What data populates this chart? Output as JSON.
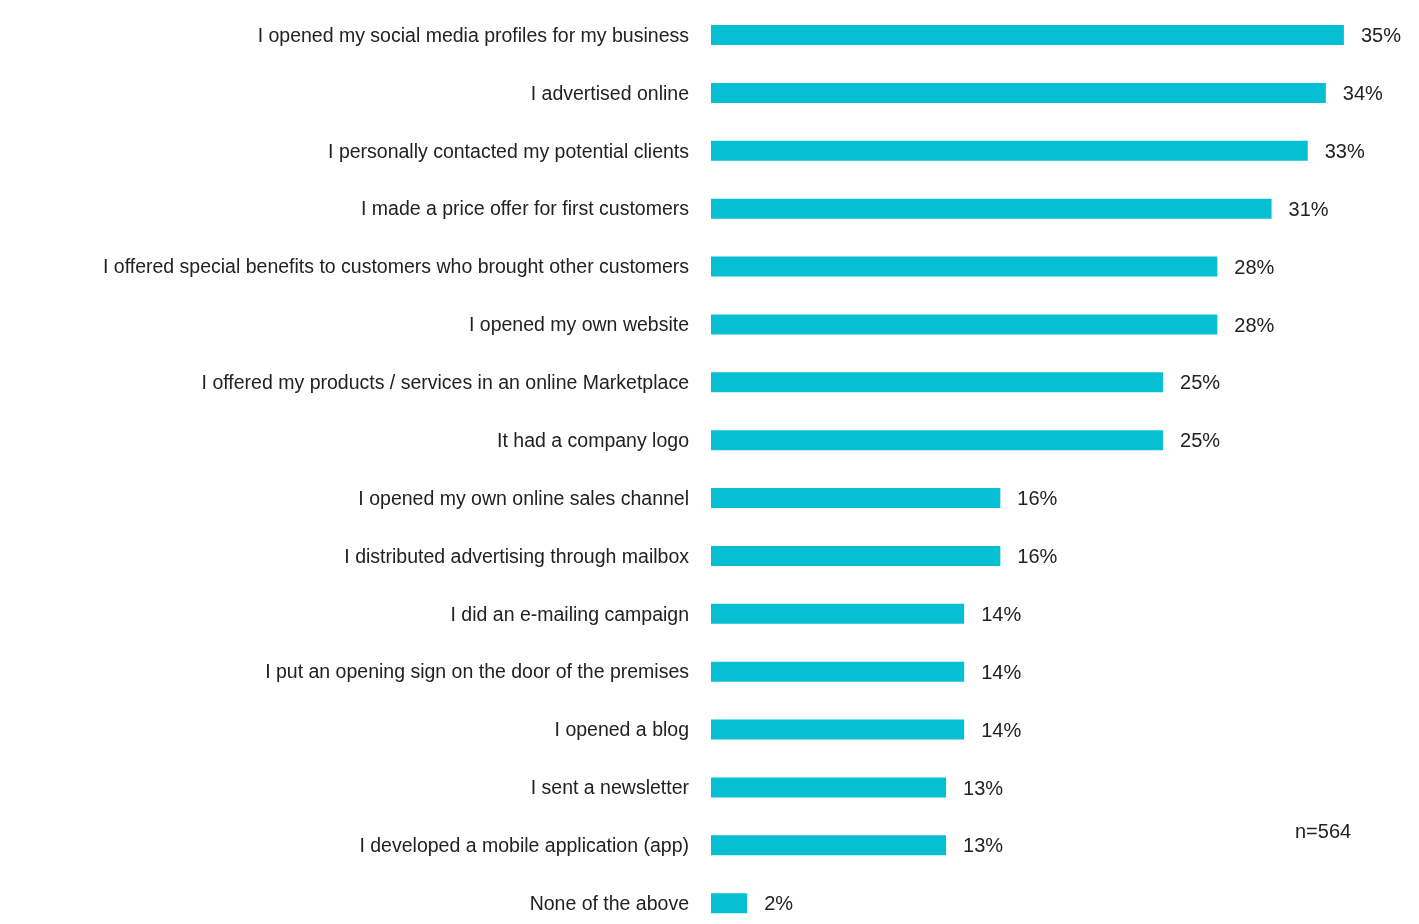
{
  "chart_data": {
    "type": "bar",
    "orientation": "horizontal",
    "categories": [
      "I opened my social media profiles for my business",
      "I advertised online",
      "I personally contacted my potential clients",
      "I made a price offer for first customers",
      "I offered special benefits to customers who brought other customers",
      "I opened my own website",
      "I offered my products / services in an online Marketplace",
      "It had a company logo",
      "I opened my own online sales channel",
      "I distributed advertising through mailbox",
      "I did an e-mailing campaign",
      "I put an opening sign on the door of the premises",
      "I opened a blog",
      "I sent a newsletter",
      "I developed a mobile application (app)",
      "None of the above"
    ],
    "values": [
      35,
      34,
      33,
      31,
      28,
      28,
      25,
      25,
      16,
      16,
      14,
      14,
      14,
      13,
      13,
      2
    ],
    "value_labels": [
      "35%",
      "34%",
      "33%",
      "31%",
      "28%",
      "28%",
      "25%",
      "25%",
      "16%",
      "16%",
      "14%",
      "14%",
      "14%",
      "13%",
      "13%",
      "2%"
    ],
    "color": "#06bfd3",
    "annotations": [
      "n=564"
    ]
  }
}
